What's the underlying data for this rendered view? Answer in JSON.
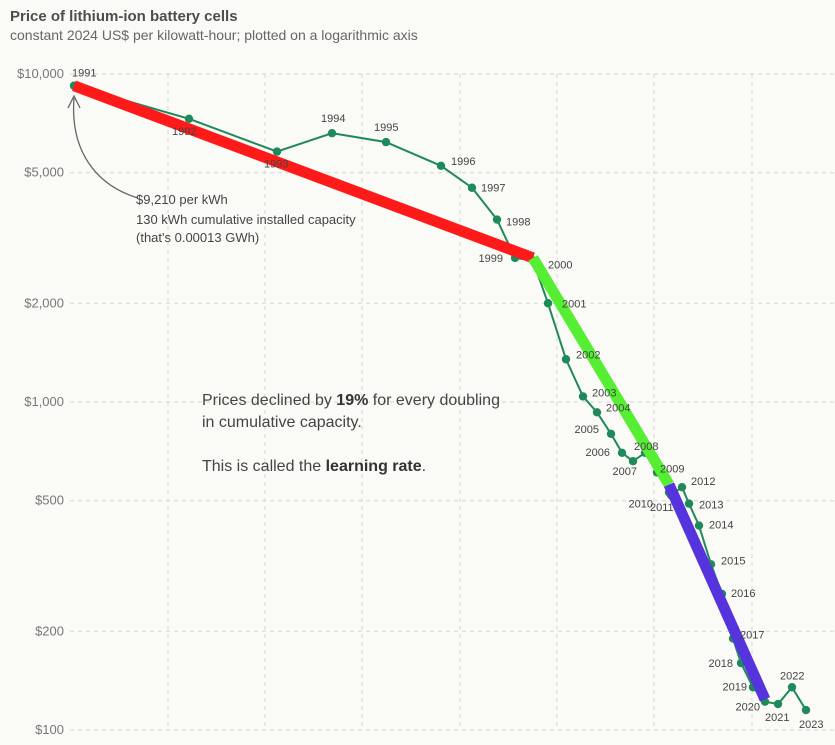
{
  "header": {
    "title": "Price of lithium-ion battery cells",
    "subtitle": "constant 2024 US$ per kilowatt-hour; plotted on a logarithmic axis"
  },
  "annotation": {
    "line1": "$9,210 per kWh",
    "line2": "130 kWh cumulative installed capacity",
    "line3": "(that's 0.00013 GWh)"
  },
  "note": {
    "line1_pre": "Prices declined by ",
    "line1_bold": "19%",
    "line1_post": " for every doubling",
    "line2": "in cumulative capacity.",
    "line3_pre": "This is called the ",
    "line3_bold": "learning rate",
    "line3_post": "."
  },
  "colors": {
    "series": "#1e8a5a",
    "fit_1991_2000": "#ff1a1a",
    "fit_2000_2010": "#55ee33",
    "fit_2010_2023": "#5533dd",
    "grid": "#d8d8d2",
    "background": "#fafaf6"
  },
  "chart_data": {
    "type": "line",
    "title": "Price of lithium-ion battery cells",
    "subtitle": "constant 2024 US$ per kilowatt-hour; plotted on a logarithmic axis",
    "yscale": "log",
    "ylim": [
      100,
      10000
    ],
    "yticks": [
      {
        "value": 10000,
        "label": "$10,000"
      },
      {
        "value": 5000,
        "label": "$5,000"
      },
      {
        "value": 2000,
        "label": "$2,000"
      },
      {
        "value": 1000,
        "label": "$1,000"
      },
      {
        "value": 500,
        "label": "$500"
      },
      {
        "value": 200,
        "label": "$200"
      },
      {
        "value": 100,
        "label": "$100"
      }
    ],
    "grid": true,
    "series": [
      {
        "points": [
          {
            "year": "1991",
            "value": 9210
          },
          {
            "year": "1992",
            "value": 7300
          },
          {
            "year": "1993",
            "value": 5800
          },
          {
            "year": "1994",
            "value": 6600
          },
          {
            "year": "1995",
            "value": 6200
          },
          {
            "year": "1996",
            "value": 5250
          },
          {
            "year": "1997",
            "value": 4500
          },
          {
            "year": "1998",
            "value": 3600
          },
          {
            "year": "1999",
            "value": 2750
          },
          {
            "year": "2000",
            "value": 2700
          },
          {
            "year": "2001",
            "value": 2000
          },
          {
            "year": "2002",
            "value": 1350
          },
          {
            "year": "2003",
            "value": 1040
          },
          {
            "year": "2004",
            "value": 930
          },
          {
            "year": "2005",
            "value": 800
          },
          {
            "year": "2006",
            "value": 700
          },
          {
            "year": "2007",
            "value": 660
          },
          {
            "year": "2008",
            "value": 700
          },
          {
            "year": "2009",
            "value": 610
          },
          {
            "year": "2010",
            "value": 530
          },
          {
            "year": "2011",
            "value": 520
          },
          {
            "year": "2012",
            "value": 550
          },
          {
            "year": "2013",
            "value": 490
          },
          {
            "year": "2014",
            "value": 420
          },
          {
            "year": "2015",
            "value": 320
          },
          {
            "year": "2016",
            "value": 260
          },
          {
            "year": "2017",
            "value": 190
          },
          {
            "year": "2018",
            "value": 160
          },
          {
            "year": "2019",
            "value": 135
          },
          {
            "year": "2020",
            "value": 122
          },
          {
            "year": "2021",
            "value": 120
          },
          {
            "year": "2022",
            "value": 135
          },
          {
            "year": "2023",
            "value": 115
          }
        ]
      }
    ],
    "fit_lines": [
      {
        "from_year": "1991",
        "to_year": "2000",
        "from_value": 9210,
        "to_value": 2750,
        "color": "#ff1a1a"
      },
      {
        "from_year": "2000",
        "to_year": "2010",
        "from_value": 2750,
        "to_value": 560,
        "color": "#55ee33"
      },
      {
        "from_year": "2010",
        "to_year": "2020",
        "from_value": 560,
        "to_value": 124,
        "color": "#5533dd"
      }
    ]
  }
}
